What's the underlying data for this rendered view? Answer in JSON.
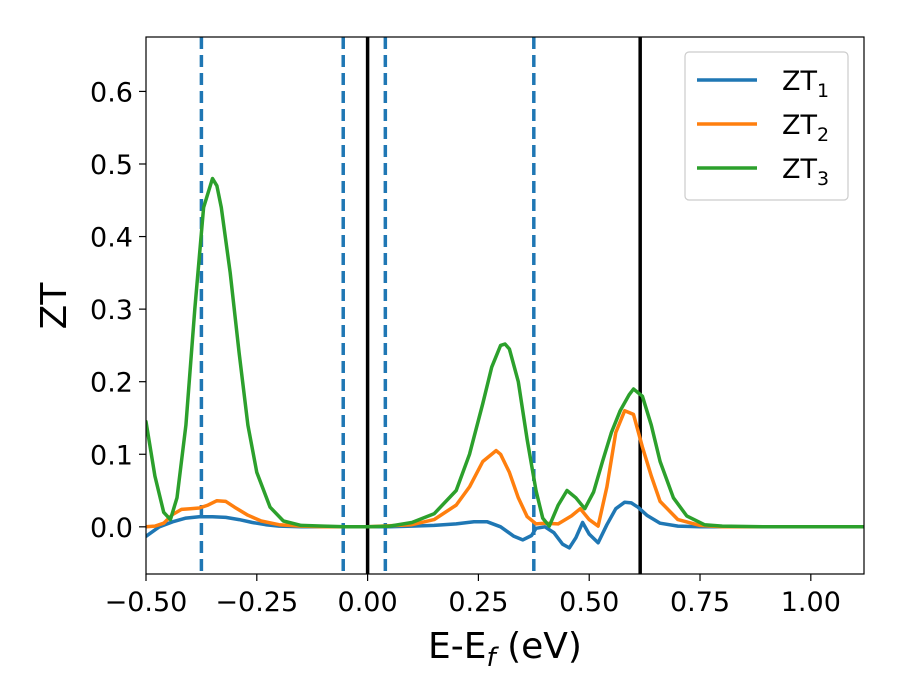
{
  "chart_data": {
    "type": "line",
    "xlabel": {
      "main": "E-E",
      "sub": "f",
      "unit": " (eV)"
    },
    "ylabel": "ZT",
    "xlim": [
      -0.5,
      1.12
    ],
    "ylim": [
      -0.065,
      0.675
    ],
    "xticks": [
      -0.5,
      -0.25,
      0.0,
      0.25,
      0.5,
      0.75,
      1.0
    ],
    "xtick_labels": [
      "−0.50",
      "−0.25",
      "0.00",
      "0.25",
      "0.50",
      "0.75",
      "1.00"
    ],
    "yticks": [
      0.0,
      0.1,
      0.2,
      0.3,
      0.4,
      0.5,
      0.6
    ],
    "ytick_labels": [
      "0.0",
      "0.1",
      "0.2",
      "0.3",
      "0.4",
      "0.5",
      "0.6"
    ],
    "grid": false,
    "legend_position": "top-right",
    "series": [
      {
        "name": "ZT",
        "sub": "1",
        "color": "#1f77b4",
        "x": [
          -0.5,
          -0.47,
          -0.44,
          -0.41,
          -0.38,
          -0.35,
          -0.32,
          -0.29,
          -0.26,
          -0.23,
          -0.2,
          -0.15,
          -0.1,
          -0.05,
          0.0,
          0.05,
          0.1,
          0.15,
          0.2,
          0.24,
          0.27,
          0.3,
          0.33,
          0.35,
          0.37,
          0.38,
          0.4,
          0.42,
          0.44,
          0.455,
          0.47,
          0.485,
          0.5,
          0.52,
          0.54,
          0.56,
          0.58,
          0.595,
          0.61,
          0.63,
          0.66,
          0.7,
          0.75,
          0.8,
          0.9,
          1.0,
          1.12
        ],
        "y": [
          -0.013,
          0.0,
          0.007,
          0.012,
          0.014,
          0.014,
          0.013,
          0.01,
          0.006,
          0.003,
          0.001,
          0.0,
          0.0,
          0.0,
          0.0,
          0.0,
          0.001,
          0.002,
          0.004,
          0.007,
          0.007,
          0.0,
          -0.013,
          -0.018,
          -0.012,
          -0.002,
          0.0,
          -0.008,
          -0.024,
          -0.029,
          -0.015,
          0.006,
          -0.01,
          -0.022,
          0.003,
          0.025,
          0.034,
          0.033,
          0.027,
          0.016,
          0.005,
          0.001,
          0.0,
          0.0,
          0.0,
          0.0,
          0.0
        ]
      },
      {
        "name": "ZT",
        "sub": "2",
        "color": "#ff7f0e",
        "x": [
          -0.5,
          -0.48,
          -0.46,
          -0.44,
          -0.42,
          -0.4,
          -0.38,
          -0.36,
          -0.34,
          -0.32,
          -0.3,
          -0.27,
          -0.24,
          -0.2,
          -0.15,
          -0.1,
          0.0,
          0.1,
          0.15,
          0.2,
          0.23,
          0.26,
          0.29,
          0.3,
          0.32,
          0.34,
          0.36,
          0.38,
          0.4,
          0.43,
          0.46,
          0.48,
          0.5,
          0.52,
          0.54,
          0.56,
          0.58,
          0.6,
          0.62,
          0.64,
          0.66,
          0.7,
          0.75,
          0.8,
          0.9,
          1.0,
          1.12
        ],
        "y": [
          0.0,
          0.001,
          0.005,
          0.017,
          0.024,
          0.025,
          0.026,
          0.03,
          0.036,
          0.035,
          0.027,
          0.016,
          0.008,
          0.003,
          0.001,
          0.0,
          0.0,
          0.003,
          0.01,
          0.03,
          0.055,
          0.09,
          0.105,
          0.1,
          0.075,
          0.04,
          0.014,
          0.004,
          0.005,
          0.004,
          0.015,
          0.025,
          0.01,
          0.001,
          0.055,
          0.13,
          0.16,
          0.155,
          0.11,
          0.07,
          0.035,
          0.01,
          0.002,
          0.0,
          0.0,
          0.0,
          0.0
        ]
      },
      {
        "name": "ZT",
        "sub": "3",
        "color": "#2ca02c",
        "x": [
          -0.5,
          -0.48,
          -0.46,
          -0.445,
          -0.43,
          -0.41,
          -0.39,
          -0.37,
          -0.35,
          -0.34,
          -0.33,
          -0.31,
          -0.29,
          -0.27,
          -0.25,
          -0.22,
          -0.19,
          -0.15,
          -0.1,
          -0.05,
          0.0,
          0.05,
          0.1,
          0.15,
          0.2,
          0.23,
          0.26,
          0.28,
          0.3,
          0.31,
          0.32,
          0.34,
          0.36,
          0.38,
          0.395,
          0.41,
          0.43,
          0.45,
          0.47,
          0.49,
          0.51,
          0.53,
          0.55,
          0.57,
          0.59,
          0.6,
          0.62,
          0.64,
          0.66,
          0.69,
          0.72,
          0.76,
          0.8,
          0.9,
          1.0,
          1.12
        ],
        "y": [
          0.145,
          0.07,
          0.02,
          0.01,
          0.04,
          0.14,
          0.3,
          0.44,
          0.48,
          0.47,
          0.44,
          0.35,
          0.24,
          0.14,
          0.075,
          0.027,
          0.008,
          0.002,
          0.001,
          0.0,
          0.0,
          0.001,
          0.006,
          0.018,
          0.05,
          0.1,
          0.17,
          0.22,
          0.25,
          0.252,
          0.245,
          0.2,
          0.12,
          0.05,
          0.012,
          0.001,
          0.03,
          0.05,
          0.04,
          0.025,
          0.048,
          0.09,
          0.13,
          0.16,
          0.182,
          0.19,
          0.18,
          0.14,
          0.09,
          0.04,
          0.015,
          0.003,
          0.001,
          0.0,
          0.0,
          0.0
        ]
      }
    ],
    "vlines": [
      {
        "x": -0.375,
        "style": "dashed",
        "color": "#1f77b4"
      },
      {
        "x": -0.055,
        "style": "dashed",
        "color": "#1f77b4"
      },
      {
        "x": 0.0,
        "style": "solid",
        "color": "#000000"
      },
      {
        "x": 0.04,
        "style": "dashed",
        "color": "#1f77b4"
      },
      {
        "x": 0.375,
        "style": "dashed",
        "color": "#1f77b4"
      },
      {
        "x": 0.615,
        "style": "solid",
        "color": "#000000"
      }
    ]
  }
}
